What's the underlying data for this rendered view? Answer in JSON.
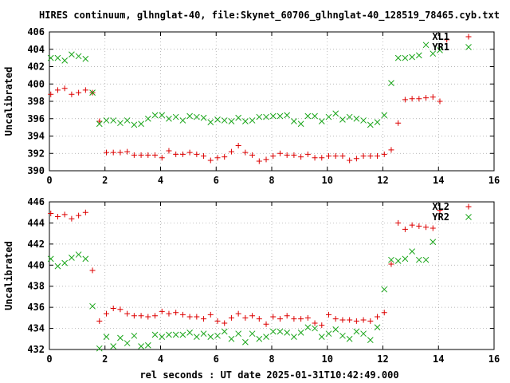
{
  "title": "HIRES continuum, glhnglat-40, file:Skynet_60706_glhnglat-40_128519_78465.cyb.txt",
  "xlabel": "rel seconds : UT date 2025-01-31T10:42:49.000",
  "colors": {
    "plus_series": "#dd0000",
    "cross_series": "#1aa51a",
    "axes": "#000000",
    "grid": "#a0a0a0"
  },
  "chart_data": [
    {
      "type": "scatter",
      "ylabel": "Uncalibrated",
      "xlim": [
        0,
        16
      ],
      "ylim": [
        390,
        406
      ],
      "xticks": [
        0,
        2,
        4,
        6,
        8,
        10,
        12,
        14,
        16
      ],
      "yticks": [
        390,
        392,
        394,
        396,
        398,
        400,
        402,
        404,
        406
      ],
      "grid": true,
      "legend_position": "top-right",
      "series": [
        {
          "name": "XL1",
          "marker": "plus",
          "points": [
            [
              0.05,
              398.8
            ],
            [
              0.3,
              399.3
            ],
            [
              0.55,
              399.5
            ],
            [
              0.8,
              398.8
            ],
            [
              1.05,
              399.0
            ],
            [
              1.3,
              399.3
            ],
            [
              1.55,
              399.0
            ],
            [
              1.8,
              395.7
            ],
            [
              2.05,
              392.1
            ],
            [
              2.3,
              392.1
            ],
            [
              2.55,
              392.1
            ],
            [
              2.8,
              392.2
            ],
            [
              3.05,
              391.8
            ],
            [
              3.3,
              391.8
            ],
            [
              3.55,
              391.8
            ],
            [
              3.8,
              391.8
            ],
            [
              4.05,
              391.5
            ],
            [
              4.3,
              392.3
            ],
            [
              4.55,
              391.9
            ],
            [
              4.8,
              391.9
            ],
            [
              5.05,
              392.1
            ],
            [
              5.3,
              391.9
            ],
            [
              5.55,
              391.7
            ],
            [
              5.8,
              391.2
            ],
            [
              6.05,
              391.5
            ],
            [
              6.3,
              391.6
            ],
            [
              6.55,
              392.2
            ],
            [
              6.8,
              392.9
            ],
            [
              7.05,
              392.1
            ],
            [
              7.3,
              391.8
            ],
            [
              7.55,
              391.1
            ],
            [
              7.8,
              391.3
            ],
            [
              8.05,
              391.7
            ],
            [
              8.3,
              392.0
            ],
            [
              8.55,
              391.8
            ],
            [
              8.8,
              391.8
            ],
            [
              9.05,
              391.6
            ],
            [
              9.3,
              391.9
            ],
            [
              9.55,
              391.5
            ],
            [
              9.8,
              391.5
            ],
            [
              10.05,
              391.7
            ],
            [
              10.3,
              391.7
            ],
            [
              10.55,
              391.7
            ],
            [
              10.8,
              391.2
            ],
            [
              11.05,
              391.4
            ],
            [
              11.3,
              391.7
            ],
            [
              11.55,
              391.7
            ],
            [
              11.8,
              391.7
            ],
            [
              12.05,
              391.9
            ],
            [
              12.3,
              392.4
            ],
            [
              12.55,
              395.5
            ],
            [
              12.8,
              398.2
            ],
            [
              13.05,
              398.3
            ],
            [
              13.3,
              398.3
            ],
            [
              13.55,
              398.4
            ],
            [
              13.8,
              398.5
            ],
            [
              14.05,
              398.0
            ],
            [
              14.3,
              405.1
            ]
          ]
        },
        {
          "name": "YR1",
          "marker": "cross",
          "points": [
            [
              0.05,
              403.0
            ],
            [
              0.3,
              403.0
            ],
            [
              0.55,
              402.7
            ],
            [
              0.8,
              403.4
            ],
            [
              1.05,
              403.2
            ],
            [
              1.3,
              402.9
            ],
            [
              1.55,
              399.0
            ],
            [
              1.8,
              395.4
            ],
            [
              2.05,
              395.8
            ],
            [
              2.3,
              395.8
            ],
            [
              2.55,
              395.5
            ],
            [
              2.8,
              395.8
            ],
            [
              3.05,
              395.3
            ],
            [
              3.3,
              395.4
            ],
            [
              3.55,
              396.0
            ],
            [
              3.8,
              396.4
            ],
            [
              4.05,
              396.4
            ],
            [
              4.3,
              396.0
            ],
            [
              4.55,
              396.2
            ],
            [
              4.8,
              395.8
            ],
            [
              5.05,
              396.3
            ],
            [
              5.3,
              396.2
            ],
            [
              5.55,
              396.1
            ],
            [
              5.8,
              395.6
            ],
            [
              6.05,
              395.9
            ],
            [
              6.3,
              395.8
            ],
            [
              6.55,
              395.7
            ],
            [
              6.8,
              396.1
            ],
            [
              7.05,
              395.7
            ],
            [
              7.3,
              395.8
            ],
            [
              7.55,
              396.2
            ],
            [
              7.8,
              396.2
            ],
            [
              8.05,
              396.3
            ],
            [
              8.3,
              396.3
            ],
            [
              8.55,
              396.4
            ],
            [
              8.8,
              395.7
            ],
            [
              9.05,
              395.4
            ],
            [
              9.3,
              396.3
            ],
            [
              9.55,
              396.3
            ],
            [
              9.8,
              395.7
            ],
            [
              10.05,
              396.2
            ],
            [
              10.3,
              396.6
            ],
            [
              10.55,
              395.9
            ],
            [
              10.8,
              396.2
            ],
            [
              11.05,
              396.0
            ],
            [
              11.3,
              395.8
            ],
            [
              11.55,
              395.3
            ],
            [
              11.8,
              395.6
            ],
            [
              12.05,
              396.4
            ],
            [
              12.3,
              400.1
            ],
            [
              12.55,
              403.0
            ],
            [
              12.8,
              403.0
            ],
            [
              13.05,
              403.1
            ],
            [
              13.3,
              403.3
            ],
            [
              13.55,
              404.5
            ],
            [
              13.8,
              403.5
            ],
            [
              14.05,
              403.9
            ]
          ]
        }
      ]
    },
    {
      "type": "scatter",
      "ylabel": "Uncalibrated",
      "xlim": [
        0,
        16
      ],
      "ylim": [
        432,
        446
      ],
      "xticks": [
        0,
        2,
        4,
        6,
        8,
        10,
        12,
        14,
        16
      ],
      "yticks": [
        432,
        434,
        436,
        438,
        440,
        442,
        444,
        446
      ],
      "grid": true,
      "legend_position": "top-right",
      "series": [
        {
          "name": "XL2",
          "marker": "plus",
          "points": [
            [
              0.05,
              444.9
            ],
            [
              0.3,
              444.6
            ],
            [
              0.55,
              444.8
            ],
            [
              0.8,
              444.4
            ],
            [
              1.05,
              444.7
            ],
            [
              1.3,
              445.0
            ],
            [
              1.55,
              439.5
            ],
            [
              1.8,
              434.7
            ],
            [
              2.05,
              435.4
            ],
            [
              2.3,
              435.9
            ],
            [
              2.55,
              435.8
            ],
            [
              2.8,
              435.4
            ],
            [
              3.05,
              435.2
            ],
            [
              3.3,
              435.2
            ],
            [
              3.55,
              435.1
            ],
            [
              3.8,
              435.2
            ],
            [
              4.05,
              435.6
            ],
            [
              4.3,
              435.4
            ],
            [
              4.55,
              435.5
            ],
            [
              4.8,
              435.3
            ],
            [
              5.05,
              435.1
            ],
            [
              5.3,
              435.1
            ],
            [
              5.55,
              434.9
            ],
            [
              5.8,
              435.3
            ],
            [
              6.05,
              434.7
            ],
            [
              6.3,
              434.5
            ],
            [
              6.55,
              435.0
            ],
            [
              6.8,
              435.4
            ],
            [
              7.05,
              435.0
            ],
            [
              7.3,
              435.2
            ],
            [
              7.55,
              434.9
            ],
            [
              7.8,
              434.4
            ],
            [
              8.05,
              435.1
            ],
            [
              8.3,
              434.9
            ],
            [
              8.55,
              435.2
            ],
            [
              8.8,
              434.9
            ],
            [
              9.05,
              434.9
            ],
            [
              9.3,
              435.0
            ],
            [
              9.55,
              434.5
            ],
            [
              9.8,
              434.3
            ],
            [
              10.05,
              435.3
            ],
            [
              10.3,
              434.9
            ],
            [
              10.55,
              434.8
            ],
            [
              10.8,
              434.8
            ],
            [
              11.05,
              434.7
            ],
            [
              11.3,
              434.8
            ],
            [
              11.55,
              434.7
            ],
            [
              11.8,
              435.1
            ],
            [
              12.05,
              435.5
            ],
            [
              12.3,
              440.1
            ],
            [
              12.55,
              444.0
            ],
            [
              12.8,
              443.4
            ],
            [
              13.05,
              443.8
            ],
            [
              13.3,
              443.7
            ],
            [
              13.55,
              443.6
            ],
            [
              13.8,
              443.5
            ],
            [
              14.05,
              445.2
            ]
          ]
        },
        {
          "name": "YR2",
          "marker": "cross",
          "points": [
            [
              0.05,
              440.6
            ],
            [
              0.3,
              439.9
            ],
            [
              0.55,
              440.2
            ],
            [
              0.8,
              440.7
            ],
            [
              1.05,
              441.0
            ],
            [
              1.3,
              440.6
            ],
            [
              1.55,
              436.1
            ],
            [
              1.8,
              432.1
            ],
            [
              2.05,
              433.2
            ],
            [
              2.3,
              432.3
            ],
            [
              2.55,
              433.1
            ],
            [
              2.8,
              432.6
            ],
            [
              3.05,
              433.3
            ],
            [
              3.3,
              432.3
            ],
            [
              3.55,
              432.4
            ],
            [
              3.8,
              433.4
            ],
            [
              4.05,
              433.2
            ],
            [
              4.3,
              433.4
            ],
            [
              4.55,
              433.4
            ],
            [
              4.8,
              433.4
            ],
            [
              5.05,
              433.6
            ],
            [
              5.3,
              433.2
            ],
            [
              5.55,
              433.5
            ],
            [
              5.8,
              433.2
            ],
            [
              6.05,
              433.3
            ],
            [
              6.3,
              433.7
            ],
            [
              6.55,
              433.0
            ],
            [
              6.8,
              433.5
            ],
            [
              7.05,
              432.7
            ],
            [
              7.3,
              433.5
            ],
            [
              7.55,
              433.0
            ],
            [
              7.8,
              433.2
            ],
            [
              8.05,
              433.7
            ],
            [
              8.3,
              433.7
            ],
            [
              8.55,
              433.6
            ],
            [
              8.8,
              433.2
            ],
            [
              9.05,
              433.6
            ],
            [
              9.3,
              434.1
            ],
            [
              9.55,
              434.0
            ],
            [
              9.8,
              433.2
            ],
            [
              10.05,
              433.5
            ],
            [
              10.3,
              433.9
            ],
            [
              10.55,
              433.3
            ],
            [
              10.8,
              433.0
            ],
            [
              11.05,
              433.7
            ],
            [
              11.3,
              433.5
            ],
            [
              11.55,
              432.9
            ],
            [
              11.8,
              434.1
            ],
            [
              12.05,
              437.7
            ],
            [
              12.3,
              440.5
            ],
            [
              12.55,
              440.4
            ],
            [
              12.8,
              440.6
            ],
            [
              13.05,
              441.3
            ],
            [
              13.3,
              440.5
            ],
            [
              13.55,
              440.5
            ],
            [
              13.8,
              442.2
            ]
          ]
        }
      ]
    }
  ]
}
